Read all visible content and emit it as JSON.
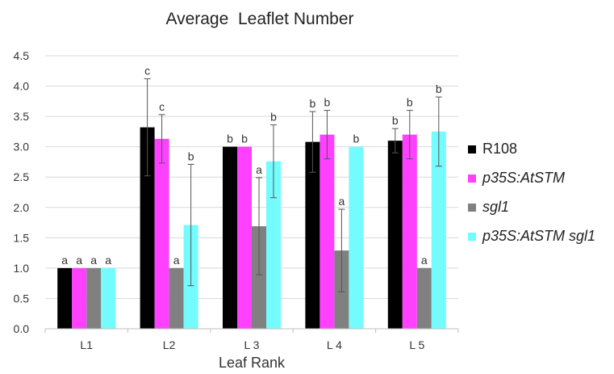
{
  "chart_data": {
    "type": "bar",
    "title": "Average  Leaflet Number",
    "xlabel": "Leaf Rank",
    "ylabel": "",
    "ylim": [
      0,
      4.5
    ],
    "yticks": [
      "0.0",
      "0.5",
      "1.0",
      "1.5",
      "2.0",
      "2.5",
      "3.0",
      "3.5",
      "4.0",
      "4.5"
    ],
    "categories": [
      "L1",
      "L2",
      "L 3",
      "L 4",
      "L 5"
    ],
    "grid": true,
    "legend_position": "right",
    "series": [
      {
        "name": "R108",
        "italic": false,
        "color": "#000000",
        "values": [
          1.0,
          3.32,
          3.0,
          3.08,
          3.1
        ],
        "err": [
          0,
          0.8,
          0.0,
          0.5,
          0.2
        ],
        "sig": [
          "a",
          "c",
          "b",
          "b",
          "b"
        ]
      },
      {
        "name": "p35S:AtSTM",
        "italic": true,
        "color": "#ff40ff",
        "values": [
          1.0,
          3.13,
          3.0,
          3.2,
          3.2
        ],
        "err": [
          0,
          0.4,
          0.0,
          0.4,
          0.4
        ],
        "sig": [
          "a",
          "c",
          "b",
          "b",
          "b"
        ]
      },
      {
        "name": "sgl1",
        "italic": true,
        "color": "#808080",
        "values": [
          1.0,
          1.0,
          1.69,
          1.29,
          1.0
        ],
        "err": [
          0,
          0,
          0.8,
          0.68,
          0
        ],
        "sig": [
          "a",
          "a",
          "a",
          "a",
          "a"
        ]
      },
      {
        "name": "p35S:AtSTM sgl1",
        "italic": true,
        "color": "#73fbfd",
        "values": [
          1.0,
          1.71,
          2.76,
          3.0,
          3.25
        ],
        "err": [
          0,
          1.0,
          0.6,
          0.0,
          0.57
        ],
        "sig": [
          "a",
          "b",
          "b",
          "b",
          "b"
        ]
      }
    ]
  }
}
